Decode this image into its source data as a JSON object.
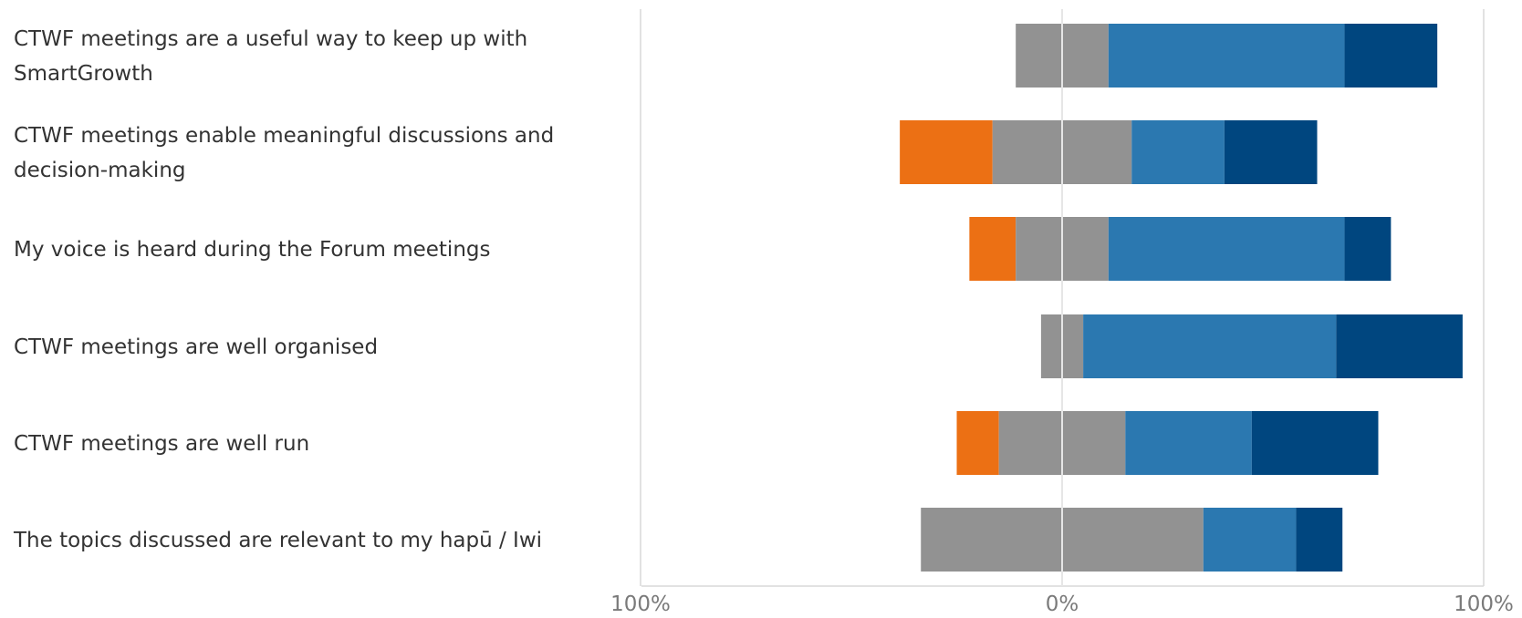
{
  "chart_data": {
    "type": "bar",
    "orientation": "horizontal",
    "stacked": "diverging",
    "categories": [
      [
        "CTWF meetings are a useful way to keep up with",
        "SmartGrowth"
      ],
      [
        "CTWF meetings enable meaningful discussions and",
        "decision-making"
      ],
      [
        "My voice is heard during the Forum meetings"
      ],
      [
        "CTWF meetings are well organised"
      ],
      [
        "CTWF meetings are well run"
      ],
      [
        "The topics discussed are relevant to my hapū / Iwi"
      ]
    ],
    "series": [
      {
        "color": "#ec7014",
        "side": "negative",
        "values": [
          0,
          22,
          11,
          0,
          10,
          0
        ]
      },
      {
        "color": "#929292",
        "side": "neutral",
        "values": [
          22,
          33,
          22,
          10,
          30,
          67
        ]
      },
      {
        "color": "#2b78b0",
        "side": "positive",
        "values": [
          56,
          22,
          56,
          60,
          30,
          22
        ]
      },
      {
        "color": "#00467f",
        "side": "positive",
        "values": [
          22,
          22,
          11,
          30,
          30,
          11
        ]
      }
    ],
    "xaxis": {
      "ticks": [
        {
          "value": -100,
          "label": "100%"
        },
        {
          "value": 0,
          "label": "0%"
        },
        {
          "value": 100,
          "label": "100%"
        }
      ],
      "range": [
        -100,
        100
      ]
    },
    "grid": "vertical at ticks",
    "legend": "none"
  }
}
